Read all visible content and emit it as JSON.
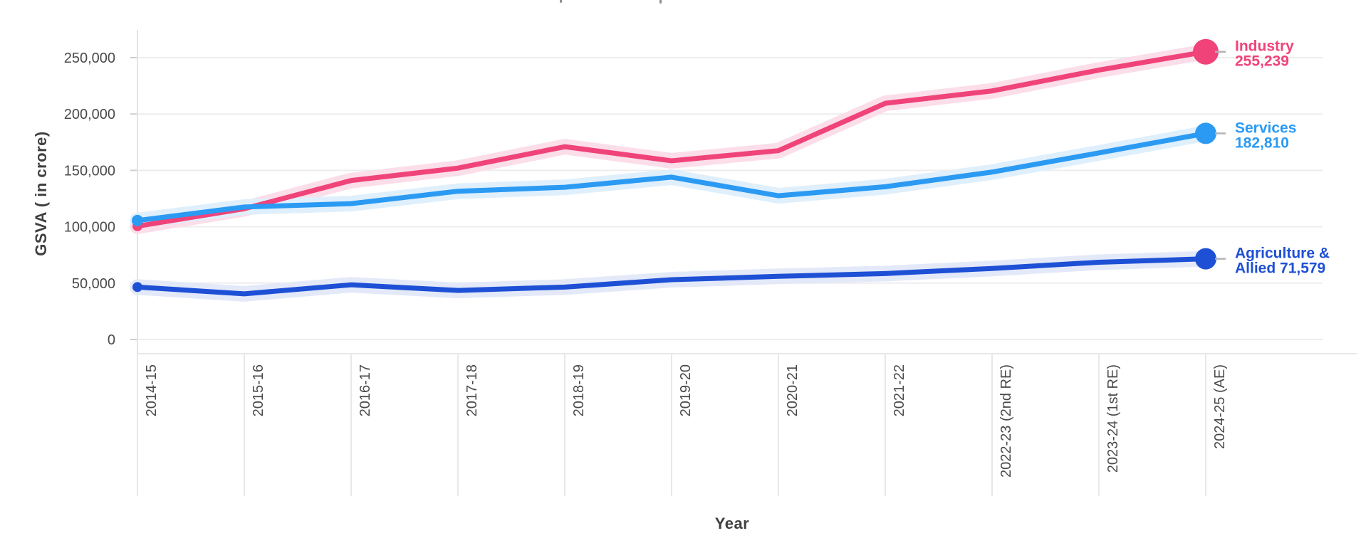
{
  "axes": {
    "y_title": "GSVA ( in crore)",
    "x_title": "Year"
  },
  "chart_data": {
    "type": "line",
    "title": "",
    "xlabel": "Year",
    "ylabel": "GSVA ( in crore)",
    "ylim": [
      0,
      275000
    ],
    "grid": "horizontal",
    "legend_position": "right-end-labels",
    "categories": [
      "2014-15",
      "2015-16",
      "2016-17",
      "2017-18",
      "2018-19",
      "2019-20",
      "2020-21",
      "2021-22",
      "2022-23 (2nd RE)",
      "2023-24 (1st RE)",
      "2024-25 (AE)"
    ],
    "y_ticks": [
      {
        "value": 0,
        "label": "0"
      },
      {
        "value": 50000,
        "label": "50,000"
      },
      {
        "value": 100000,
        "label": "100,000"
      },
      {
        "value": 150000,
        "label": "150,000"
      },
      {
        "value": 200000,
        "label": "200,000"
      },
      {
        "value": 250000,
        "label": "250,000"
      }
    ],
    "series": [
      {
        "name": "Industry",
        "color": "#F04379",
        "band_color": "#FBDEE9",
        "end_label_lines": [
          "Industry",
          "255,239"
        ],
        "end_value_label": "255,239",
        "start_dot_r": 7,
        "end_dot_r": 18,
        "values": [
          100500,
          116000,
          141000,
          152000,
          171000,
          158500,
          167500,
          209500,
          220500,
          239000,
          255239
        ]
      },
      {
        "name": "Services",
        "color": "#2B9AF3",
        "band_color": "#DFEFFC",
        "end_label_lines": [
          "Services",
          "182,810"
        ],
        "end_value_label": "182,810",
        "start_dot_r": 8,
        "end_dot_r": 15,
        "values": [
          105500,
          117500,
          120500,
          131500,
          135000,
          144000,
          127500,
          135500,
          148500,
          165500,
          182810
        ]
      },
      {
        "name": "Agriculture & Allied",
        "color": "#1E50D6",
        "band_color": "#E3E9F8",
        "end_label_lines": [
          "Agriculture &",
          "Allied 71,579"
        ],
        "end_value_label": "71,579",
        "start_dot_r": 7,
        "end_dot_r": 15,
        "values": [
          46500,
          40500,
          48500,
          43500,
          46500,
          53000,
          56000,
          58500,
          63000,
          68500,
          71579
        ]
      }
    ],
    "colors": {
      "gridline": "#ededed",
      "axis_line": "#e3e3e3",
      "tick": "#cfcfcf",
      "band_separator": "#e8e8e8",
      "tick_label": "#4a4a4a",
      "end_label_dash": "#b3b3b3"
    }
  }
}
